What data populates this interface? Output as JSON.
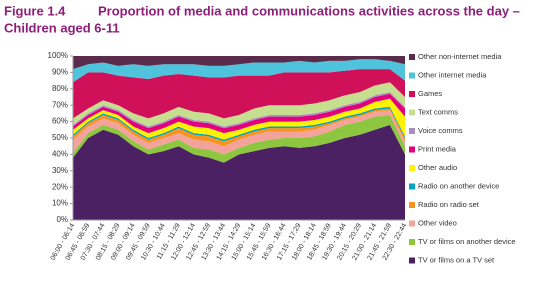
{
  "chart_data": {
    "type": "stacked_area",
    "figure": "Figure 1.4",
    "title": [
      "Proportion of media and communications activities across the day –",
      "Children aged 6-11"
    ],
    "categories": [
      "06:00 - 06:14",
      "06:45 - 06:59",
      "07:30 - 07:44",
      "08:15 - 08:29",
      "09:00 - 09:14",
      "09:45 - 09:59",
      "10:30 - 10:44",
      "11:15 - 11:29",
      "12:00 - 12:14",
      "12:45 - 12:59",
      "13:30 - 13:44",
      "14:15 - 14:29",
      "15:00 - 15:14",
      "15:45 - 15:59",
      "16:30 - 16:44",
      "17:15 - 17:29",
      "18:00 - 18:14",
      "18:45 - 18:59",
      "19:30 - 19:44",
      "20:15 - 20:29",
      "21:00 - 21:14",
      "21:45 - 21:59",
      "22:30 - 22:44"
    ],
    "series": [
      {
        "name": "TV or films on a TV set",
        "color": "#4b2163",
        "values": [
          38,
          50,
          55,
          52,
          45,
          40,
          42,
          45,
          40,
          38,
          35,
          40,
          42,
          44,
          45,
          44,
          45,
          47,
          50,
          52,
          55,
          58,
          40
        ]
      },
      {
        "name": "TV or films on another device",
        "color": "#8dc63f",
        "values": [
          3,
          3,
          3,
          3,
          3,
          3,
          4,
          4,
          4,
          5,
          5,
          4,
          5,
          5,
          5,
          6,
          6,
          7,
          8,
          8,
          8,
          6,
          5
        ]
      },
      {
        "name": "Other video",
        "color": "#f3a39b",
        "values": [
          8,
          4,
          4,
          4,
          4,
          4,
          4,
          4,
          5,
          5,
          5,
          5,
          5,
          5,
          4,
          4,
          4,
          4,
          3,
          3,
          3,
          3,
          3
        ]
      },
      {
        "name": "Radio on radio set",
        "color": "#f7941d",
        "values": [
          2,
          2,
          2,
          2,
          2,
          2,
          2,
          3,
          3,
          3,
          3,
          2,
          2,
          2,
          2,
          2,
          2,
          1,
          1,
          1,
          1,
          1,
          2
        ]
      },
      {
        "name": "Radio on another device",
        "color": "#00a3c4",
        "values": [
          1,
          1,
          1,
          1,
          1,
          1,
          1,
          1,
          1,
          1,
          1,
          1,
          1,
          1,
          1,
          1,
          1,
          1,
          1,
          1,
          1,
          1,
          1
        ]
      },
      {
        "name": "Other audio",
        "color": "#fff200",
        "values": [
          3,
          2,
          2,
          2,
          2,
          3,
          3,
          3,
          4,
          4,
          4,
          3,
          3,
          3,
          3,
          3,
          3,
          3,
          3,
          3,
          4,
          5,
          12
        ]
      },
      {
        "name": "Print media",
        "color": "#e4007c",
        "values": [
          2,
          2,
          2,
          2,
          3,
          3,
          3,
          3,
          3,
          3,
          3,
          3,
          3,
          3,
          3,
          3,
          3,
          3,
          3,
          3,
          3,
          3,
          5
        ]
      },
      {
        "name": "Voice comms",
        "color": "#a88ec2",
        "values": [
          1,
          1,
          1,
          1,
          1,
          1,
          1,
          1,
          1,
          1,
          1,
          1,
          1,
          1,
          1,
          1,
          1,
          1,
          1,
          1,
          1,
          1,
          1
        ]
      },
      {
        "name": "Text comms",
        "color": "#c6df8f",
        "values": [
          4,
          3,
          3,
          3,
          4,
          5,
          5,
          5,
          5,
          5,
          5,
          5,
          6,
          6,
          6,
          6,
          6,
          6,
          6,
          6,
          6,
          6,
          6
        ]
      },
      {
        "name": "Games",
        "color": "#d0115a",
        "values": [
          22,
          22,
          17,
          18,
          22,
          24,
          23,
          20,
          22,
          22,
          25,
          24,
          20,
          18,
          20,
          20,
          19,
          17,
          15,
          14,
          10,
          8,
          10
        ]
      },
      {
        "name": "Other internet media",
        "color": "#4fc3dc",
        "values": [
          8,
          5,
          6,
          6,
          8,
          8,
          7,
          6,
          7,
          7,
          7,
          7,
          8,
          8,
          6,
          7,
          6,
          7,
          6,
          6,
          6,
          5,
          10
        ]
      },
      {
        "name": "Other non-internet media",
        "color": "#5b2b4b",
        "values": [
          8,
          5,
          4,
          6,
          5,
          6,
          5,
          5,
          5,
          6,
          6,
          5,
          4,
          4,
          4,
          3,
          4,
          3,
          3,
          2,
          2,
          3,
          5
        ]
      }
    ],
    "ylim": [
      0,
      100
    ],
    "yticks": [
      {
        "value": 0,
        "label": "0%"
      },
      {
        "value": 10,
        "label": "10%"
      },
      {
        "value": 20,
        "label": "20%"
      },
      {
        "value": 30,
        "label": "30%"
      },
      {
        "value": 40,
        "label": "40%"
      },
      {
        "value": 50,
        "label": "50%"
      },
      {
        "value": 60,
        "label": "60%"
      },
      {
        "value": 70,
        "label": "70%"
      },
      {
        "value": 80,
        "label": "80%"
      },
      {
        "value": 90,
        "label": "90%"
      },
      {
        "value": 100,
        "label": "100%"
      }
    ]
  }
}
